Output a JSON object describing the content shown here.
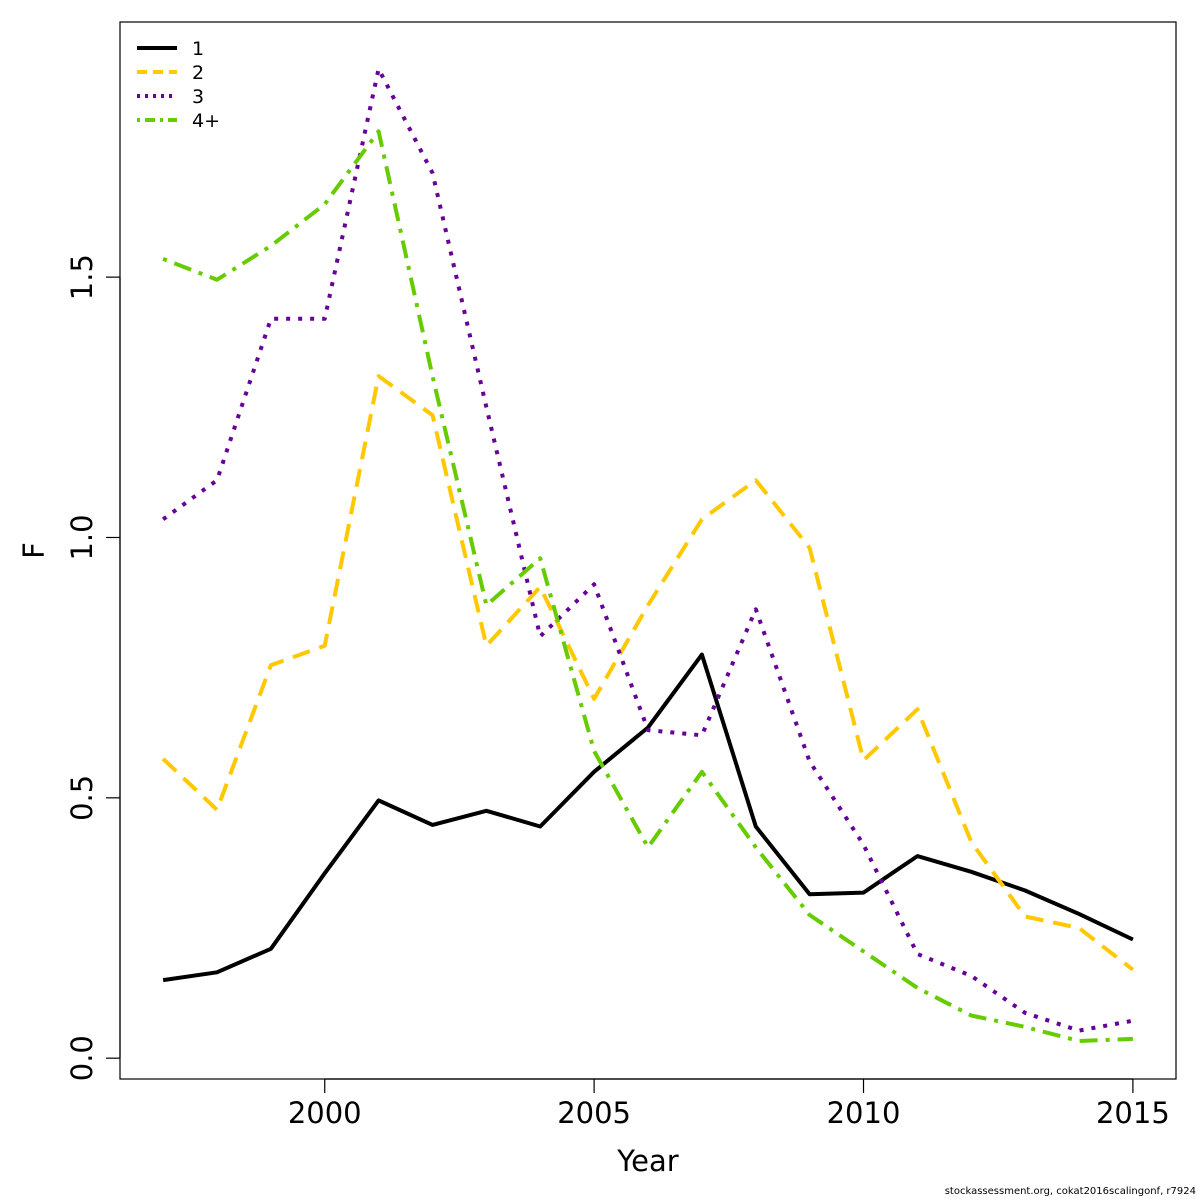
{
  "chart_data": {
    "type": "line",
    "title": "",
    "xlabel": "Year",
    "ylabel": "F",
    "xlim": [
      1996.2,
      2015.8
    ],
    "ylim": [
      -0.04,
      1.99
    ],
    "xticks": [
      2000,
      2005,
      2010,
      2015
    ],
    "yticks": [
      0.0,
      0.5,
      1.0,
      1.5
    ],
    "xtick_labels": [
      "2000",
      "2005",
      "2010",
      "2015"
    ],
    "ytick_labels": [
      "0.0",
      "0.5",
      "1.0",
      "1.5"
    ],
    "grid": false,
    "legend_position": "top-left",
    "x": [
      1997,
      1998,
      1999,
      2000,
      2001,
      2002,
      2003,
      2004,
      2005,
      2006,
      2007,
      2008,
      2009,
      2010,
      2011,
      2012,
      2013,
      2014,
      2015
    ],
    "series": [
      {
        "name": "1",
        "color": "#000000",
        "dash": "solid",
        "values": [
          0.15,
          0.165,
          0.21,
          0.355,
          0.495,
          0.448,
          0.475,
          0.445,
          0.55,
          0.635,
          0.775,
          0.445,
          0.315,
          0.318,
          0.388,
          0.358,
          0.322,
          0.277,
          0.228
        ]
      },
      {
        "name": "2",
        "color": "#FFC800",
        "dash": "dashed",
        "values": [
          0.575,
          0.477,
          0.755,
          0.792,
          1.31,
          1.235,
          0.792,
          0.905,
          0.69,
          0.87,
          1.035,
          1.11,
          0.98,
          0.572,
          0.67,
          0.415,
          0.272,
          0.25,
          0.17
        ]
      },
      {
        "name": "3",
        "color": "#660099",
        "dash": "dotted",
        "values": [
          1.035,
          1.11,
          1.42,
          1.42,
          1.9,
          1.7,
          1.25,
          0.81,
          0.91,
          0.63,
          0.62,
          0.862,
          0.57,
          0.41,
          0.2,
          0.158,
          0.087,
          0.053,
          0.072
        ]
      },
      {
        "name": "4+",
        "color": "#66CC00",
        "dash": "dotdash",
        "values": [
          1.535,
          1.495,
          1.56,
          1.64,
          1.78,
          1.31,
          0.87,
          0.96,
          0.59,
          0.405,
          0.55,
          0.405,
          0.275,
          0.205,
          0.135,
          0.082,
          0.06,
          0.033,
          0.037
        ]
      }
    ]
  },
  "footer": {
    "credit": "stockassessment.org, cokat2016scalingonf, r7924"
  }
}
